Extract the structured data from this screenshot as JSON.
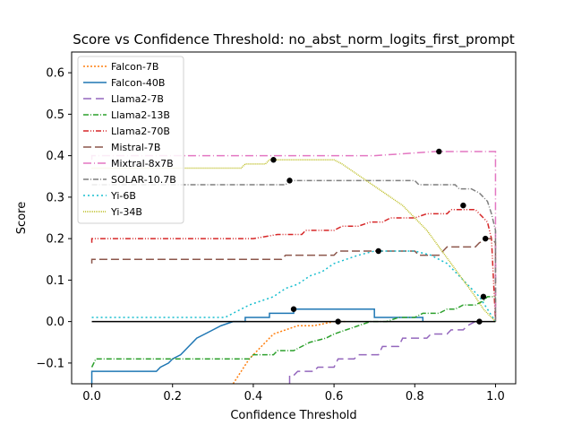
{
  "chart_data": {
    "type": "line",
    "title": "Score vs Confidence Threshold: no_abst_norm_logits_first_prompt",
    "xlabel": "Confidence Threshold",
    "ylabel": "Score",
    "xlim": [
      -0.05,
      1.05
    ],
    "ylim": [
      -0.15,
      0.65
    ],
    "xticks": [
      0.0,
      0.2,
      0.4,
      0.6,
      0.8,
      1.0
    ],
    "xtick_labels": [
      "0.0",
      "0.2",
      "0.4",
      "0.6",
      "0.8",
      "1.0"
    ],
    "yticks": [
      -0.1,
      0.0,
      0.1,
      0.2,
      0.3,
      0.4,
      0.5,
      0.6
    ],
    "ytick_labels": [
      "−0.1",
      "0.0",
      "0.1",
      "0.2",
      "0.3",
      "0.4",
      "0.5",
      "0.6"
    ],
    "grid": false,
    "legend_position": "upper-left",
    "baseline": {
      "y": 0.0,
      "x_range": [
        0.0,
        1.0
      ],
      "color": "#000000"
    },
    "series": [
      {
        "name": "Falcon-7B",
        "color": "#ff7f0e",
        "dash": "2,2",
        "points": [
          [
            0.35,
            -0.15
          ],
          [
            0.37,
            -0.12
          ],
          [
            0.39,
            -0.09
          ],
          [
            0.41,
            -0.07
          ],
          [
            0.43,
            -0.05
          ],
          [
            0.45,
            -0.03
          ],
          [
            0.48,
            -0.02
          ],
          [
            0.51,
            -0.01
          ],
          [
            0.55,
            -0.01
          ],
          [
            0.6,
            0.0
          ],
          [
            0.63,
            0.0
          ]
        ]
      },
      {
        "name": "Falcon-40B",
        "color": "#1f77b4",
        "dash": "",
        "points": [
          [
            0.0,
            -0.15
          ],
          [
            0.0,
            -0.12
          ],
          [
            0.08,
            -0.12
          ],
          [
            0.16,
            -0.12
          ],
          [
            0.17,
            -0.11
          ],
          [
            0.19,
            -0.1
          ],
          [
            0.2,
            -0.09
          ],
          [
            0.22,
            -0.08
          ],
          [
            0.24,
            -0.06
          ],
          [
            0.26,
            -0.04
          ],
          [
            0.28,
            -0.03
          ],
          [
            0.3,
            -0.02
          ],
          [
            0.32,
            -0.01
          ],
          [
            0.35,
            0.0
          ],
          [
            0.38,
            0.0
          ],
          [
            0.38,
            0.01
          ],
          [
            0.44,
            0.01
          ],
          [
            0.44,
            0.02
          ],
          [
            0.5,
            0.02
          ],
          [
            0.5,
            0.03
          ],
          [
            0.7,
            0.03
          ],
          [
            0.7,
            0.01
          ],
          [
            0.82,
            0.01
          ],
          [
            0.82,
            0.0
          ]
        ]
      },
      {
        "name": "Llama2-7B",
        "color": "#9467bd",
        "dash": "9,5",
        "points": [
          [
            0.49,
            -0.15
          ],
          [
            0.49,
            -0.13
          ],
          [
            0.5,
            -0.13
          ],
          [
            0.51,
            -0.12
          ],
          [
            0.55,
            -0.12
          ],
          [
            0.56,
            -0.11
          ],
          [
            0.6,
            -0.11
          ],
          [
            0.61,
            -0.09
          ],
          [
            0.65,
            -0.09
          ],
          [
            0.66,
            -0.08
          ],
          [
            0.71,
            -0.08
          ],
          [
            0.72,
            -0.06
          ],
          [
            0.76,
            -0.06
          ],
          [
            0.77,
            -0.04
          ],
          [
            0.83,
            -0.04
          ],
          [
            0.84,
            -0.03
          ],
          [
            0.88,
            -0.03
          ],
          [
            0.89,
            -0.02
          ],
          [
            0.92,
            -0.02
          ],
          [
            0.93,
            -0.01
          ],
          [
            0.95,
            0.0
          ]
        ]
      },
      {
        "name": "Llama2-13B",
        "color": "#2ca02c",
        "dash": "6,2,1,2",
        "points": [
          [
            0.0,
            -0.11
          ],
          [
            0.01,
            -0.09
          ],
          [
            0.2,
            -0.09
          ],
          [
            0.39,
            -0.09
          ],
          [
            0.4,
            -0.08
          ],
          [
            0.45,
            -0.08
          ],
          [
            0.46,
            -0.07
          ],
          [
            0.5,
            -0.07
          ],
          [
            0.52,
            -0.06
          ],
          [
            0.54,
            -0.05
          ],
          [
            0.58,
            -0.04
          ],
          [
            0.6,
            -0.03
          ],
          [
            0.63,
            -0.02
          ],
          [
            0.66,
            -0.01
          ],
          [
            0.69,
            0.0
          ],
          [
            0.73,
            0.0
          ],
          [
            0.76,
            0.01
          ],
          [
            0.8,
            0.01
          ],
          [
            0.82,
            0.02
          ],
          [
            0.86,
            0.02
          ],
          [
            0.88,
            0.03
          ],
          [
            0.9,
            0.03
          ],
          [
            0.92,
            0.04
          ],
          [
            0.95,
            0.04
          ],
          [
            0.97,
            0.05
          ],
          [
            0.98,
            0.06
          ],
          [
            1.0,
            0.06
          ]
        ]
      },
      {
        "name": "Llama2-70B",
        "color": "#d62728",
        "dash": "6,2,1,2,1,2",
        "points": [
          [
            0.0,
            0.19
          ],
          [
            0.0,
            0.2
          ],
          [
            0.2,
            0.2
          ],
          [
            0.4,
            0.2
          ],
          [
            0.46,
            0.21
          ],
          [
            0.52,
            0.21
          ],
          [
            0.53,
            0.22
          ],
          [
            0.6,
            0.22
          ],
          [
            0.62,
            0.23
          ],
          [
            0.66,
            0.23
          ],
          [
            0.69,
            0.24
          ],
          [
            0.72,
            0.24
          ],
          [
            0.74,
            0.25
          ],
          [
            0.8,
            0.25
          ],
          [
            0.83,
            0.26
          ],
          [
            0.88,
            0.26
          ],
          [
            0.89,
            0.27
          ],
          [
            0.95,
            0.27
          ],
          [
            0.96,
            0.26
          ],
          [
            0.98,
            0.24
          ],
          [
            0.99,
            0.2
          ],
          [
            1.0,
            0.0
          ]
        ]
      },
      {
        "name": "Mistral-7B",
        "color": "#8c564b",
        "dash": "9,4",
        "points": [
          [
            0.0,
            0.14
          ],
          [
            0.0,
            0.15
          ],
          [
            0.2,
            0.15
          ],
          [
            0.47,
            0.15
          ],
          [
            0.48,
            0.16
          ],
          [
            0.6,
            0.16
          ],
          [
            0.61,
            0.17
          ],
          [
            0.8,
            0.17
          ],
          [
            0.81,
            0.16
          ],
          [
            0.86,
            0.16
          ],
          [
            0.87,
            0.17
          ],
          [
            0.88,
            0.18
          ],
          [
            0.95,
            0.18
          ],
          [
            0.96,
            0.19
          ],
          [
            0.98,
            0.2
          ],
          [
            0.99,
            0.2
          ],
          [
            1.0,
            0.19
          ],
          [
            1.0,
            0.0
          ]
        ]
      },
      {
        "name": "Mixtral-8x7B",
        "color": "#e377c2",
        "dash": "9,3,1,3",
        "points": [
          [
            0.0,
            0.39
          ],
          [
            0.0,
            0.4
          ],
          [
            0.3,
            0.4
          ],
          [
            0.7,
            0.4
          ],
          [
            0.85,
            0.41
          ],
          [
            0.99,
            0.41
          ],
          [
            1.0,
            0.41
          ],
          [
            1.0,
            0.0
          ]
        ]
      },
      {
        "name": "SOLAR-10.7B",
        "color": "#7f7f7f",
        "dash": "6,2,1,2",
        "points": [
          [
            0.0,
            0.33
          ],
          [
            0.48,
            0.33
          ],
          [
            0.49,
            0.34
          ],
          [
            0.8,
            0.34
          ],
          [
            0.81,
            0.33
          ],
          [
            0.9,
            0.33
          ],
          [
            0.91,
            0.32
          ],
          [
            0.94,
            0.32
          ],
          [
            0.96,
            0.31
          ],
          [
            0.98,
            0.29
          ],
          [
            0.99,
            0.26
          ],
          [
            1.0,
            0.22
          ],
          [
            1.0,
            0.0
          ]
        ]
      },
      {
        "name": "Yi-6B",
        "color": "#17becf",
        "dash": "2,3",
        "points": [
          [
            0.0,
            0.01
          ],
          [
            0.2,
            0.01
          ],
          [
            0.33,
            0.01
          ],
          [
            0.35,
            0.02
          ],
          [
            0.37,
            0.03
          ],
          [
            0.39,
            0.04
          ],
          [
            0.42,
            0.05
          ],
          [
            0.45,
            0.06
          ],
          [
            0.48,
            0.08
          ],
          [
            0.51,
            0.09
          ],
          [
            0.54,
            0.11
          ],
          [
            0.57,
            0.12
          ],
          [
            0.6,
            0.14
          ],
          [
            0.63,
            0.15
          ],
          [
            0.66,
            0.16
          ],
          [
            0.7,
            0.17
          ],
          [
            0.75,
            0.17
          ],
          [
            0.8,
            0.17
          ],
          [
            0.84,
            0.16
          ],
          [
            0.88,
            0.14
          ],
          [
            0.92,
            0.1
          ],
          [
            0.96,
            0.06
          ],
          [
            0.98,
            0.03
          ],
          [
            1.0,
            0.0
          ]
        ]
      },
      {
        "name": "Yi-34B",
        "color": "#bcbd22",
        "dash": "1,1",
        "points": [
          [
            0.0,
            0.37
          ],
          [
            0.37,
            0.37
          ],
          [
            0.38,
            0.38
          ],
          [
            0.43,
            0.38
          ],
          [
            0.44,
            0.39
          ],
          [
            0.6,
            0.39
          ],
          [
            0.62,
            0.38
          ],
          [
            0.65,
            0.36
          ],
          [
            0.68,
            0.34
          ],
          [
            0.71,
            0.32
          ],
          [
            0.74,
            0.3
          ],
          [
            0.77,
            0.28
          ],
          [
            0.8,
            0.25
          ],
          [
            0.83,
            0.22
          ],
          [
            0.86,
            0.18
          ],
          [
            0.89,
            0.14
          ],
          [
            0.92,
            0.1
          ],
          [
            0.95,
            0.06
          ],
          [
            0.97,
            0.03
          ],
          [
            0.99,
            0.01
          ],
          [
            1.0,
            0.0
          ]
        ]
      }
    ],
    "markers": [
      {
        "x": 0.45,
        "y": 0.39
      },
      {
        "x": 0.49,
        "y": 0.34
      },
      {
        "x": 0.5,
        "y": 0.03
      },
      {
        "x": 0.61,
        "y": 0.0
      },
      {
        "x": 0.71,
        "y": 0.17
      },
      {
        "x": 0.86,
        "y": 0.41
      },
      {
        "x": 0.92,
        "y": 0.28
      },
      {
        "x": 0.96,
        "y": 0.0
      },
      {
        "x": 0.97,
        "y": 0.06
      },
      {
        "x": 0.975,
        "y": 0.2
      }
    ]
  }
}
